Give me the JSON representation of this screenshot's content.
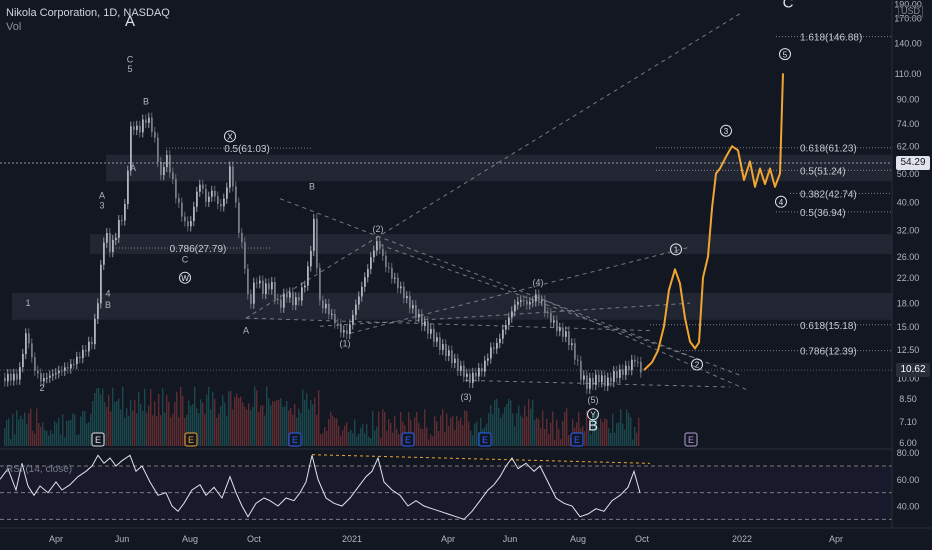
{
  "header": {
    "symbol_line": "Nikola Corporation, 1D, NASDAQ",
    "volume_label": "Vol"
  },
  "currency_badge": "USD",
  "colors": {
    "background": "#131722",
    "candle_up": "#b2b5be",
    "candle_down": "#787b86",
    "projection": "#f0a530",
    "current_price_badge": "#2a2e39",
    "price_badge_white": "#e0e3eb",
    "zone": "#5d6170",
    "grid_line": "#9598a1",
    "volume_up": "#26a69a",
    "volume_down": "#ef5350"
  },
  "chart_data": [
    {
      "type": "candlestick",
      "title": "Nikola Corporation, 1D, NASDAQ",
      "y_axis": {
        "scale": "log",
        "ylim": [
          5.4,
          190
        ],
        "ticks": [
          190.0,
          170.0,
          140.0,
          110.0,
          90.0,
          74.0,
          62.0,
          50.0,
          40.0,
          32.0,
          26.0,
          22.0,
          18.0,
          15.0,
          12.5,
          10.0,
          8.5,
          7.1,
          6.0
        ]
      },
      "x_axis": {
        "ticks": [
          "Apr",
          "Jun",
          "Aug",
          "Oct",
          "2021",
          "Apr",
          "Jun",
          "Aug",
          "Oct",
          "2022",
          "Apr"
        ]
      },
      "price_badges": [
        {
          "value": "54.29",
          "price": 54.29
        },
        {
          "value": "10.62",
          "price": 10.62
        }
      ],
      "price_path": [
        [
          2,
          10.0
        ],
        [
          18,
          10.1
        ],
        [
          26,
          14.5
        ],
        [
          32,
          11.0
        ],
        [
          40,
          9.8
        ],
        [
          50,
          10.2
        ],
        [
          60,
          10.6
        ],
        [
          70,
          11.0
        ],
        [
          82,
          12.2
        ],
        [
          92,
          13.5
        ],
        [
          98,
          19.5
        ],
        [
          104,
          32.0
        ],
        [
          110,
          27.0
        ],
        [
          116,
          32.0
        ],
        [
          124,
          38.0
        ],
        [
          128,
          58.0
        ],
        [
          131,
          76.0
        ],
        [
          135,
          70.0
        ],
        [
          140,
          72.0
        ],
        [
          145,
          77.0
        ],
        [
          150,
          74.0
        ],
        [
          155,
          62.0
        ],
        [
          160,
          48.0
        ],
        [
          165,
          58.0
        ],
        [
          170,
          50.0
        ],
        [
          175,
          42.0
        ],
        [
          180,
          37.0
        ],
        [
          185,
          33.0
        ],
        [
          190,
          34.0
        ],
        [
          195,
          42.0
        ],
        [
          200,
          47.0
        ],
        [
          205,
          40.0
        ],
        [
          212,
          44.0
        ],
        [
          218,
          38.0
        ],
        [
          224,
          41.0
        ],
        [
          229,
          52.0
        ],
        [
          232,
          46.0
        ],
        [
          238,
          32.0
        ],
        [
          243,
          26.0
        ],
        [
          248,
          17.0
        ],
        [
          255,
          22.0
        ],
        [
          262,
          20.0
        ],
        [
          270,
          21.0
        ],
        [
          278,
          17.5
        ],
        [
          286,
          19.5
        ],
        [
          294,
          18.0
        ],
        [
          302,
          20.0
        ],
        [
          308,
          24.0
        ],
        [
          313,
          34.0
        ],
        [
          318,
          18.0
        ],
        [
          325,
          17.5
        ],
        [
          332,
          16.0
        ],
        [
          340,
          14.5
        ],
        [
          347,
          14.2
        ],
        [
          352,
          16.5
        ],
        [
          358,
          19.0
        ],
        [
          366,
          23.0
        ],
        [
          372,
          27.0
        ],
        [
          377,
          29.5
        ],
        [
          383,
          25.0
        ],
        [
          392,
          22.0
        ],
        [
          400,
          20.0
        ],
        [
          408,
          18.0
        ],
        [
          418,
          16.0
        ],
        [
          428,
          14.5
        ],
        [
          438,
          13.0
        ],
        [
          448,
          12.0
        ],
        [
          456,
          11.0
        ],
        [
          462,
          10.5
        ],
        [
          468,
          9.8
        ],
        [
          474,
          10.3
        ],
        [
          482,
          10.8
        ],
        [
          490,
          12.5
        ],
        [
          496,
          13.0
        ],
        [
          502,
          14.5
        ],
        [
          508,
          16.0
        ],
        [
          514,
          17.8
        ],
        [
          520,
          18.5
        ],
        [
          528,
          17.8
        ],
        [
          535,
          19.0
        ],
        [
          540,
          18.4
        ],
        [
          546,
          16.5
        ],
        [
          552,
          15.5
        ],
        [
          558,
          14.5
        ],
        [
          565,
          14.0
        ],
        [
          572,
          12.5
        ],
        [
          580,
          10.2
        ],
        [
          586,
          9.5
        ],
        [
          592,
          9.8
        ],
        [
          598,
          10.0
        ],
        [
          606,
          9.6
        ],
        [
          612,
          10.2
        ],
        [
          620,
          10.4
        ],
        [
          628,
          10.9
        ],
        [
          634,
          11.6
        ],
        [
          640,
          10.62
        ]
      ],
      "projection_path": [
        [
          644,
          10.62
        ],
        [
          652,
          11.3
        ],
        [
          658,
          12.4
        ],
        [
          664,
          15.0
        ],
        [
          669,
          20.0
        ],
        [
          675,
          23.5
        ],
        [
          680,
          21.0
        ],
        [
          685,
          16.0
        ],
        [
          690,
          13.3
        ],
        [
          695,
          12.6
        ],
        [
          699,
          13.2
        ],
        [
          703,
          22.0
        ],
        [
          708,
          26.0
        ],
        [
          712,
          38.0
        ],
        [
          716,
          50.0
        ],
        [
          720,
          52.0
        ],
        [
          726,
          57.0
        ],
        [
          732,
          62.0
        ],
        [
          738,
          60.0
        ],
        [
          744,
          47.5
        ],
        [
          750,
          55.0
        ],
        [
          755,
          45.0
        ],
        [
          760,
          52.0
        ],
        [
          765,
          46.0
        ],
        [
          770,
          52.0
        ],
        [
          775,
          45.0
        ],
        [
          780,
          50.0
        ],
        [
          783,
          110.0
        ]
      ],
      "zones": [
        {
          "price_top": 58.0,
          "price_bottom": 47.0,
          "x_start": 106
        },
        {
          "price_top": 31.0,
          "price_bottom": 26.5,
          "x_start": 90
        },
        {
          "price_top": 19.5,
          "price_bottom": 15.8,
          "x_start": 12
        }
      ],
      "fib_levels": [
        {
          "label": "1.618(146.88)",
          "price": 146.88,
          "x_start": 776,
          "x_end": 892
        },
        {
          "label": "0.618(61.23)",
          "price": 61.23,
          "x_start": 656,
          "x_end": 892
        },
        {
          "label": "0.5(51.24)",
          "price": 51.24,
          "x_start": 656,
          "x_end": 892
        },
        {
          "label": "0.382(42.74)",
          "price": 42.74,
          "x_start": 790,
          "x_end": 892
        },
        {
          "label": "0.5(36.94)",
          "price": 36.94,
          "x_start": 776,
          "x_end": 892
        },
        {
          "label": "0.618(15.18)",
          "price": 15.18,
          "x_start": 650,
          "x_end": 892
        },
        {
          "label": "0.786(12.39)",
          "price": 12.39,
          "x_start": 680,
          "x_end": 892
        },
        {
          "label": "0.5(61.03)",
          "price": 61.03,
          "x_start": 166,
          "x_end": 312
        },
        {
          "label": "0.786(27.79)",
          "price": 27.79,
          "x_start": 110,
          "x_end": 270
        }
      ],
      "trendlines": [
        {
          "from": [
            246,
            16.0
          ],
          "to": [
            740,
            176.0
          ]
        },
        {
          "from": [
            280,
            41.0
          ],
          "to": [
            740,
            10.2
          ]
        },
        {
          "from": [
            246,
            16.0
          ],
          "to": [
            650,
            14.5
          ]
        },
        {
          "from": [
            320,
            15.0
          ],
          "to": [
            690,
            18.0
          ]
        },
        {
          "from": [
            350,
            14.2
          ],
          "to": [
            690,
            28.0
          ]
        },
        {
          "from": [
            380,
            28.5
          ],
          "to": [
            700,
            11.5
          ]
        },
        {
          "from": [
            465,
            9.8
          ],
          "to": [
            730,
            9.3
          ]
        },
        {
          "from": [
            545,
            18.4
          ],
          "to": [
            750,
            9.0
          ]
        }
      ],
      "wave_labels": [
        {
          "text": "A",
          "x": 130,
          "price": 160.0,
          "style": "large"
        },
        {
          "text": "C",
          "x": 788,
          "price": 185.0,
          "style": "large"
        },
        {
          "text": "B",
          "x": 593,
          "price": 6.6,
          "style": "large"
        },
        {
          "text": "1",
          "x": 28,
          "price": 17.6,
          "style": "small"
        },
        {
          "text": "2",
          "x": 42,
          "price": 9.0,
          "style": "small"
        },
        {
          "text": "A",
          "x": 102,
          "price": 41.0,
          "style": "small"
        },
        {
          "text": "3",
          "x": 102,
          "price": 38.0,
          "style": "small"
        },
        {
          "text": "4",
          "x": 108,
          "price": 19.0,
          "style": "small"
        },
        {
          "text": "B",
          "x": 108,
          "price": 17.3,
          "style": "small"
        },
        {
          "text": "C",
          "x": 130,
          "price": 120.0,
          "style": "small"
        },
        {
          "text": "5",
          "x": 130,
          "price": 111.0,
          "style": "small"
        },
        {
          "text": "B",
          "x": 146,
          "price": 86.0,
          "style": "small"
        },
        {
          "text": "A",
          "x": 133,
          "price": 51.0,
          "style": "small"
        },
        {
          "text": "C",
          "x": 185,
          "price": 24.8,
          "style": "small"
        },
        {
          "text": "B",
          "x": 312,
          "price": 44.0,
          "style": "small"
        },
        {
          "text": "A",
          "x": 246,
          "price": 14.2,
          "style": "small"
        },
        {
          "text": "(2)",
          "x": 378,
          "price": 31.5,
          "style": "small"
        },
        {
          "text": "(1)",
          "x": 345,
          "price": 12.8,
          "style": "small"
        },
        {
          "text": "(4)",
          "x": 538,
          "price": 20.7,
          "style": "small"
        },
        {
          "text": "(3)",
          "x": 466,
          "price": 8.4,
          "style": "small"
        },
        {
          "text": "(5)",
          "x": 593,
          "price": 8.2,
          "style": "small"
        }
      ],
      "circled_labels": [
        {
          "text": "X",
          "x": 230,
          "price": 67.0
        },
        {
          "text": "W",
          "x": 185,
          "price": 22.0
        },
        {
          "text": "Y",
          "x": 593,
          "price": 7.5
        },
        {
          "text": "1",
          "x": 676,
          "price": 27.5
        },
        {
          "text": "2",
          "x": 697,
          "price": 11.1
        },
        {
          "text": "3",
          "x": 726,
          "price": 70.0
        },
        {
          "text": "4",
          "x": 781,
          "price": 40.0
        },
        {
          "text": "5",
          "x": 785,
          "price": 128.0
        }
      ],
      "earnings_markers": [
        {
          "label": "E",
          "x": 98,
          "style": "white"
        },
        {
          "label": "E",
          "x": 191,
          "style": "orange"
        },
        {
          "label": "E",
          "x": 295,
          "style": "blue"
        },
        {
          "label": "E",
          "x": 408,
          "style": "blue"
        },
        {
          "label": "E",
          "x": 485,
          "style": "blue"
        },
        {
          "label": "E",
          "x": 577,
          "style": "blue"
        },
        {
          "label": "E",
          "x": 691,
          "style": "purple"
        }
      ]
    },
    {
      "type": "line",
      "title": "RSI (14, close)",
      "ylim": [
        28,
        82
      ],
      "ticks": [
        80.0,
        60.0,
        40.0
      ],
      "levels": [
        70,
        50,
        30
      ],
      "values": [
        [
          0,
          60
        ],
        [
          8,
          68
        ],
        [
          16,
          52
        ],
        [
          22,
          72
        ],
        [
          28,
          55
        ],
        [
          34,
          48
        ],
        [
          40,
          55
        ],
        [
          48,
          50
        ],
        [
          56,
          58
        ],
        [
          62,
          52
        ],
        [
          70,
          56
        ],
        [
          78,
          62
        ],
        [
          86,
          66
        ],
        [
          92,
          70
        ],
        [
          98,
          78
        ],
        [
          104,
          72
        ],
        [
          110,
          76
        ],
        [
          116,
          70
        ],
        [
          122,
          74
        ],
        [
          130,
          78
        ],
        [
          136,
          66
        ],
        [
          142,
          70
        ],
        [
          150,
          58
        ],
        [
          158,
          48
        ],
        [
          166,
          50
        ],
        [
          172,
          40
        ],
        [
          178,
          36
        ],
        [
          184,
          42
        ],
        [
          192,
          52
        ],
        [
          200,
          56
        ],
        [
          206,
          48
        ],
        [
          214,
          54
        ],
        [
          222,
          46
        ],
        [
          230,
          62
        ],
        [
          236,
          50
        ],
        [
          242,
          40
        ],
        [
          248,
          32
        ],
        [
          256,
          42
        ],
        [
          264,
          46
        ],
        [
          270,
          44
        ],
        [
          278,
          40
        ],
        [
          286,
          46
        ],
        [
          294,
          44
        ],
        [
          300,
          50
        ],
        [
          306,
          58
        ],
        [
          312,
          78
        ],
        [
          318,
          60
        ],
        [
          326,
          46
        ],
        [
          334,
          42
        ],
        [
          342,
          40
        ],
        [
          350,
          46
        ],
        [
          358,
          54
        ],
        [
          366,
          62
        ],
        [
          372,
          66
        ],
        [
          378,
          76
        ],
        [
          384,
          58
        ],
        [
          392,
          52
        ],
        [
          400,
          48
        ],
        [
          408,
          40
        ],
        [
          416,
          44
        ],
        [
          424,
          40
        ],
        [
          432,
          38
        ],
        [
          440,
          36
        ],
        [
          448,
          34
        ],
        [
          456,
          32
        ],
        [
          464,
          30
        ],
        [
          472,
          36
        ],
        [
          480,
          44
        ],
        [
          488,
          52
        ],
        [
          494,
          56
        ],
        [
          500,
          62
        ],
        [
          506,
          70
        ],
        [
          512,
          76
        ],
        [
          518,
          68
        ],
        [
          526,
          72
        ],
        [
          534,
          66
        ],
        [
          540,
          70
        ],
        [
          548,
          58
        ],
        [
          556,
          46
        ],
        [
          564,
          42
        ],
        [
          572,
          40
        ],
        [
          580,
          32
        ],
        [
          588,
          34
        ],
        [
          596,
          38
        ],
        [
          604,
          36
        ],
        [
          612,
          44
        ],
        [
          620,
          48
        ],
        [
          628,
          54
        ],
        [
          634,
          66
        ],
        [
          640,
          50
        ]
      ]
    }
  ]
}
